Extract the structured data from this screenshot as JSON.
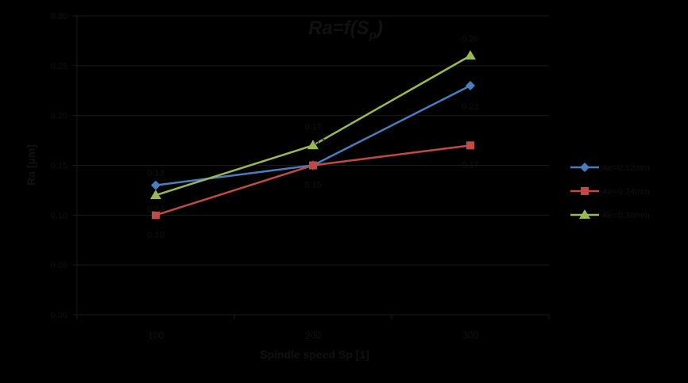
{
  "chart_data": {
    "type": "line",
    "title": "Ra=f(Sp)",
    "title_main": "Ra=f(S",
    "title_sub": "p",
    "title_close": ")",
    "xlabel": "Spindle speed Sp [1]",
    "ylabel": "Ra [µm]",
    "categories": [
      "100",
      "200",
      "300"
    ],
    "ylim": [
      0.0,
      0.3
    ],
    "yticks": [
      "0.00",
      "0.05",
      "0.10",
      "0.15",
      "0.20",
      "0.25",
      "0.30"
    ],
    "grid": true,
    "legend_position": "right",
    "series": [
      {
        "name": "Ae=0.12mm",
        "color": "#4a7ebb",
        "marker": "diamond",
        "values": [
          0.13,
          0.15,
          0.23
        ],
        "labels": [
          "0.13",
          "0.15",
          "0.23"
        ]
      },
      {
        "name": "Ae=0.24mm",
        "color": "#be4b48",
        "marker": "square",
        "values": [
          0.1,
          0.15,
          0.17
        ],
        "labels": [
          "0.10",
          "0.15",
          "0.17"
        ]
      },
      {
        "name": "Ae=0.36mm",
        "color": "#98b954",
        "marker": "triangle",
        "values": [
          0.12,
          0.17,
          0.26
        ],
        "labels": [
          "0.12",
          "0.17",
          "0.26"
        ]
      }
    ]
  }
}
